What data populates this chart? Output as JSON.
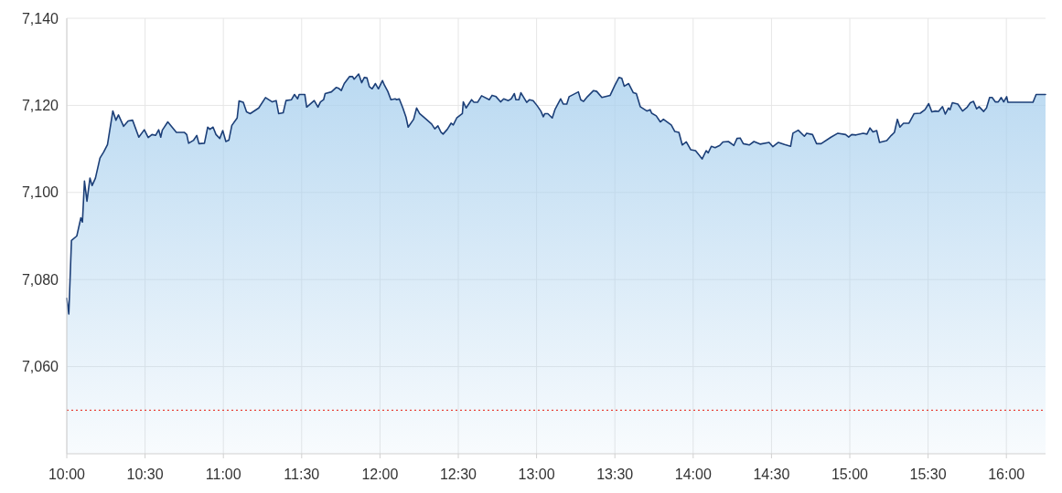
{
  "chart_data": {
    "type": "area",
    "xlim": [
      10,
      16.25
    ],
    "ylim": [
      7040,
      7140
    ],
    "xticks": [
      {
        "value": 10,
        "label": "10:00"
      },
      {
        "value": 10.5,
        "label": "10:30"
      },
      {
        "value": 11,
        "label": "11:00"
      },
      {
        "value": 11.5,
        "label": "11:30"
      },
      {
        "value": 12,
        "label": "12:00"
      },
      {
        "value": 12.5,
        "label": "12:30"
      },
      {
        "value": 13,
        "label": "13:00"
      },
      {
        "value": 13.5,
        "label": "13:30"
      },
      {
        "value": 14,
        "label": "14:00"
      },
      {
        "value": 14.5,
        "label": "14:30"
      },
      {
        "value": 15,
        "label": "15:00"
      },
      {
        "value": 15.5,
        "label": "15:30"
      },
      {
        "value": 16,
        "label": "16:00"
      }
    ],
    "yticks": [
      {
        "value": 7060,
        "label": "7,060"
      },
      {
        "value": 7080,
        "label": "7,080"
      },
      {
        "value": 7100,
        "label": "7,100"
      },
      {
        "value": 7120,
        "label": "7,120"
      },
      {
        "value": 7140,
        "label": "7,140"
      }
    ],
    "grid": true,
    "ref_lines": [
      {
        "axis": "y",
        "value": 7050,
        "color": "#e8453c",
        "line_style": "dotted"
      }
    ],
    "series": [
      {
        "color": "#1c3f78",
        "x": [
          10.0,
          10.013,
          10.03,
          10.064,
          10.09,
          10.1,
          10.113,
          10.129,
          10.148,
          10.162,
          10.183,
          10.212,
          10.236,
          10.26,
          10.294,
          10.314,
          10.33,
          10.363,
          10.392,
          10.42,
          10.46,
          10.495,
          10.52,
          10.544,
          10.567,
          10.587,
          10.6,
          10.61,
          10.645,
          10.7,
          10.75,
          10.766,
          10.778,
          10.81,
          10.83,
          10.844,
          10.879,
          10.9,
          10.914,
          10.934,
          10.953,
          10.977,
          10.996,
          11.016,
          11.035,
          11.054,
          11.088,
          11.1,
          11.127,
          11.148,
          11.171,
          11.226,
          11.269,
          11.312,
          11.337,
          11.353,
          11.382,
          11.4,
          11.435,
          11.454,
          11.474,
          11.484,
          11.52,
          11.532,
          11.58,
          11.604,
          11.62,
          11.64,
          11.65,
          11.69,
          11.72,
          11.737,
          11.753,
          11.772,
          11.805,
          11.825,
          11.835,
          11.864,
          11.883,
          11.9,
          11.917,
          11.932,
          11.95,
          11.971,
          11.99,
          12.016,
          12.029,
          12.05,
          12.07,
          12.097,
          12.107,
          12.123,
          12.146,
          12.166,
          12.18,
          12.215,
          12.234,
          12.253,
          12.292,
          12.33,
          12.35,
          12.37,
          12.39,
          12.403,
          12.43,
          12.454,
          12.468,
          12.49,
          12.526,
          12.532,
          12.55,
          12.585,
          12.6,
          12.623,
          12.649,
          12.698,
          12.716,
          12.741,
          12.77,
          12.79,
          12.82,
          12.838,
          12.858,
          12.868,
          12.887,
          12.9,
          12.937,
          12.955,
          12.978,
          13.004,
          13.027,
          13.043,
          13.053,
          13.072,
          13.1,
          13.117,
          13.154,
          13.17,
          13.193,
          13.208,
          13.267,
          13.282,
          13.3,
          13.325,
          13.364,
          13.384,
          13.417,
          13.47,
          13.5,
          13.526,
          13.544,
          13.56,
          13.588,
          13.618,
          13.637,
          13.662,
          13.705,
          13.725,
          13.735,
          13.764,
          13.79,
          13.81,
          13.86,
          13.883,
          13.909,
          13.93,
          13.956,
          13.985,
          14.015,
          14.057,
          14.083,
          14.096,
          14.116,
          14.14,
          14.17,
          14.19,
          14.225,
          14.26,
          14.28,
          14.3,
          14.32,
          14.358,
          14.388,
          14.427,
          14.485,
          14.509,
          14.544,
          14.583,
          14.622,
          14.637,
          14.671,
          14.71,
          14.725,
          14.762,
          14.788,
          14.817,
          14.88,
          14.924,
          14.973,
          14.993,
          15.012,
          15.04,
          15.085,
          15.11,
          15.129,
          15.148,
          15.172,
          15.19,
          15.236,
          15.265,
          15.285,
          15.304,
          15.32,
          15.343,
          15.378,
          15.411,
          15.45,
          15.48,
          15.504,
          15.524,
          15.547,
          15.567,
          15.592,
          15.61,
          15.63,
          15.64,
          15.655,
          15.69,
          15.72,
          15.75,
          15.77,
          15.79,
          15.81,
          15.826,
          15.855,
          15.873,
          15.893,
          15.909,
          15.929,
          15.948,
          15.967,
          15.983,
          16.002,
          16.01,
          16.17,
          16.19,
          16.25
        ],
        "values": [
          7075.7,
          7072.1,
          7089,
          7090,
          7094.2,
          7093.2,
          7102.6,
          7098,
          7103.3,
          7101.6,
          7103.3,
          7107.9,
          7109.3,
          7111,
          7118.7,
          7116.6,
          7117.8,
          7115.2,
          7116.4,
          7116.6,
          7112.7,
          7114.4,
          7112.6,
          7113.3,
          7113.1,
          7114.4,
          7112.7,
          7114.3,
          7116.2,
          7113.8,
          7113.8,
          7113.3,
          7111.3,
          7112,
          7113.1,
          7111.2,
          7111.3,
          7115,
          7114.5,
          7115,
          7113.3,
          7112.4,
          7114.2,
          7111.7,
          7112,
          7115.4,
          7117.1,
          7121,
          7120.7,
          7118.5,
          7118.1,
          7119.4,
          7121.8,
          7120.8,
          7121.1,
          7118.1,
          7118.3,
          7121.1,
          7121.3,
          7122.5,
          7121.5,
          7122.5,
          7122.5,
          7119.6,
          7121.1,
          7119.6,
          7120.8,
          7121.3,
          7122.7,
          7123.1,
          7124.1,
          7123.9,
          7123.4,
          7125,
          7126.6,
          7126.6,
          7126,
          7127.2,
          7125.2,
          7126.4,
          7126.3,
          7124.3,
          7123.8,
          7125,
          7123.8,
          7125.7,
          7124.6,
          7123.2,
          7121.3,
          7121.5,
          7121.3,
          7121.5,
          7119.4,
          7117.3,
          7115,
          7116.8,
          7119.4,
          7118.1,
          7116.9,
          7115.7,
          7114.6,
          7115.3,
          7113.8,
          7113.4,
          7114.5,
          7115.9,
          7115.5,
          7117.1,
          7118.1,
          7120.8,
          7119.4,
          7121.3,
          7120.7,
          7120.7,
          7122.2,
          7121.3,
          7122.3,
          7122,
          7120.8,
          7121.5,
          7121.1,
          7121.5,
          7122.7,
          7121.3,
          7121.3,
          7122.9,
          7120.7,
          7121.3,
          7121.1,
          7119.9,
          7118.7,
          7117.4,
          7118.1,
          7118.1,
          7117.1,
          7119,
          7121.5,
          7120.3,
          7120.3,
          7122,
          7123.1,
          7121.3,
          7120.9,
          7122,
          7123.4,
          7123.2,
          7121.8,
          7122.3,
          7124.6,
          7126.4,
          7126.2,
          7124.4,
          7125,
          7122.9,
          7122.7,
          7119.7,
          7118.7,
          7119,
          7118.2,
          7117.6,
          7116.2,
          7116.8,
          7115.5,
          7114,
          7113.8,
          7110.9,
          7111.6,
          7109.8,
          7109.6,
          7107.7,
          7109.6,
          7109.1,
          7110.6,
          7110.3,
          7110.8,
          7111.6,
          7111.7,
          7110.8,
          7112.4,
          7112.5,
          7111.2,
          7110.9,
          7111.7,
          7111.1,
          7111.5,
          7110.5,
          7111.5,
          7111,
          7110.6,
          7113.6,
          7114.3,
          7112.9,
          7113.6,
          7113.3,
          7111.2,
          7111.2,
          7112.7,
          7113.6,
          7113.3,
          7112.7,
          7113.3,
          7113.2,
          7113.6,
          7113.4,
          7114.8,
          7113.9,
          7114.2,
          7111.5,
          7111.9,
          7113.1,
          7113.8,
          7116.8,
          7115,
          7115.9,
          7115.9,
          7118.1,
          7118.2,
          7119,
          7120.4,
          7118.5,
          7118.7,
          7118.6,
          7119.7,
          7118,
          7119.4,
          7119,
          7120.6,
          7120.3,
          7118.7,
          7119.6,
          7120.6,
          7120.9,
          7119.2,
          7119.7,
          7118.6,
          7119.4,
          7121.8,
          7121.8,
          7120.8,
          7120.8,
          7121.8,
          7120.8,
          7122,
          7120.7,
          7120.7,
          7122.5,
          7122.5
        ]
      }
    ]
  }
}
